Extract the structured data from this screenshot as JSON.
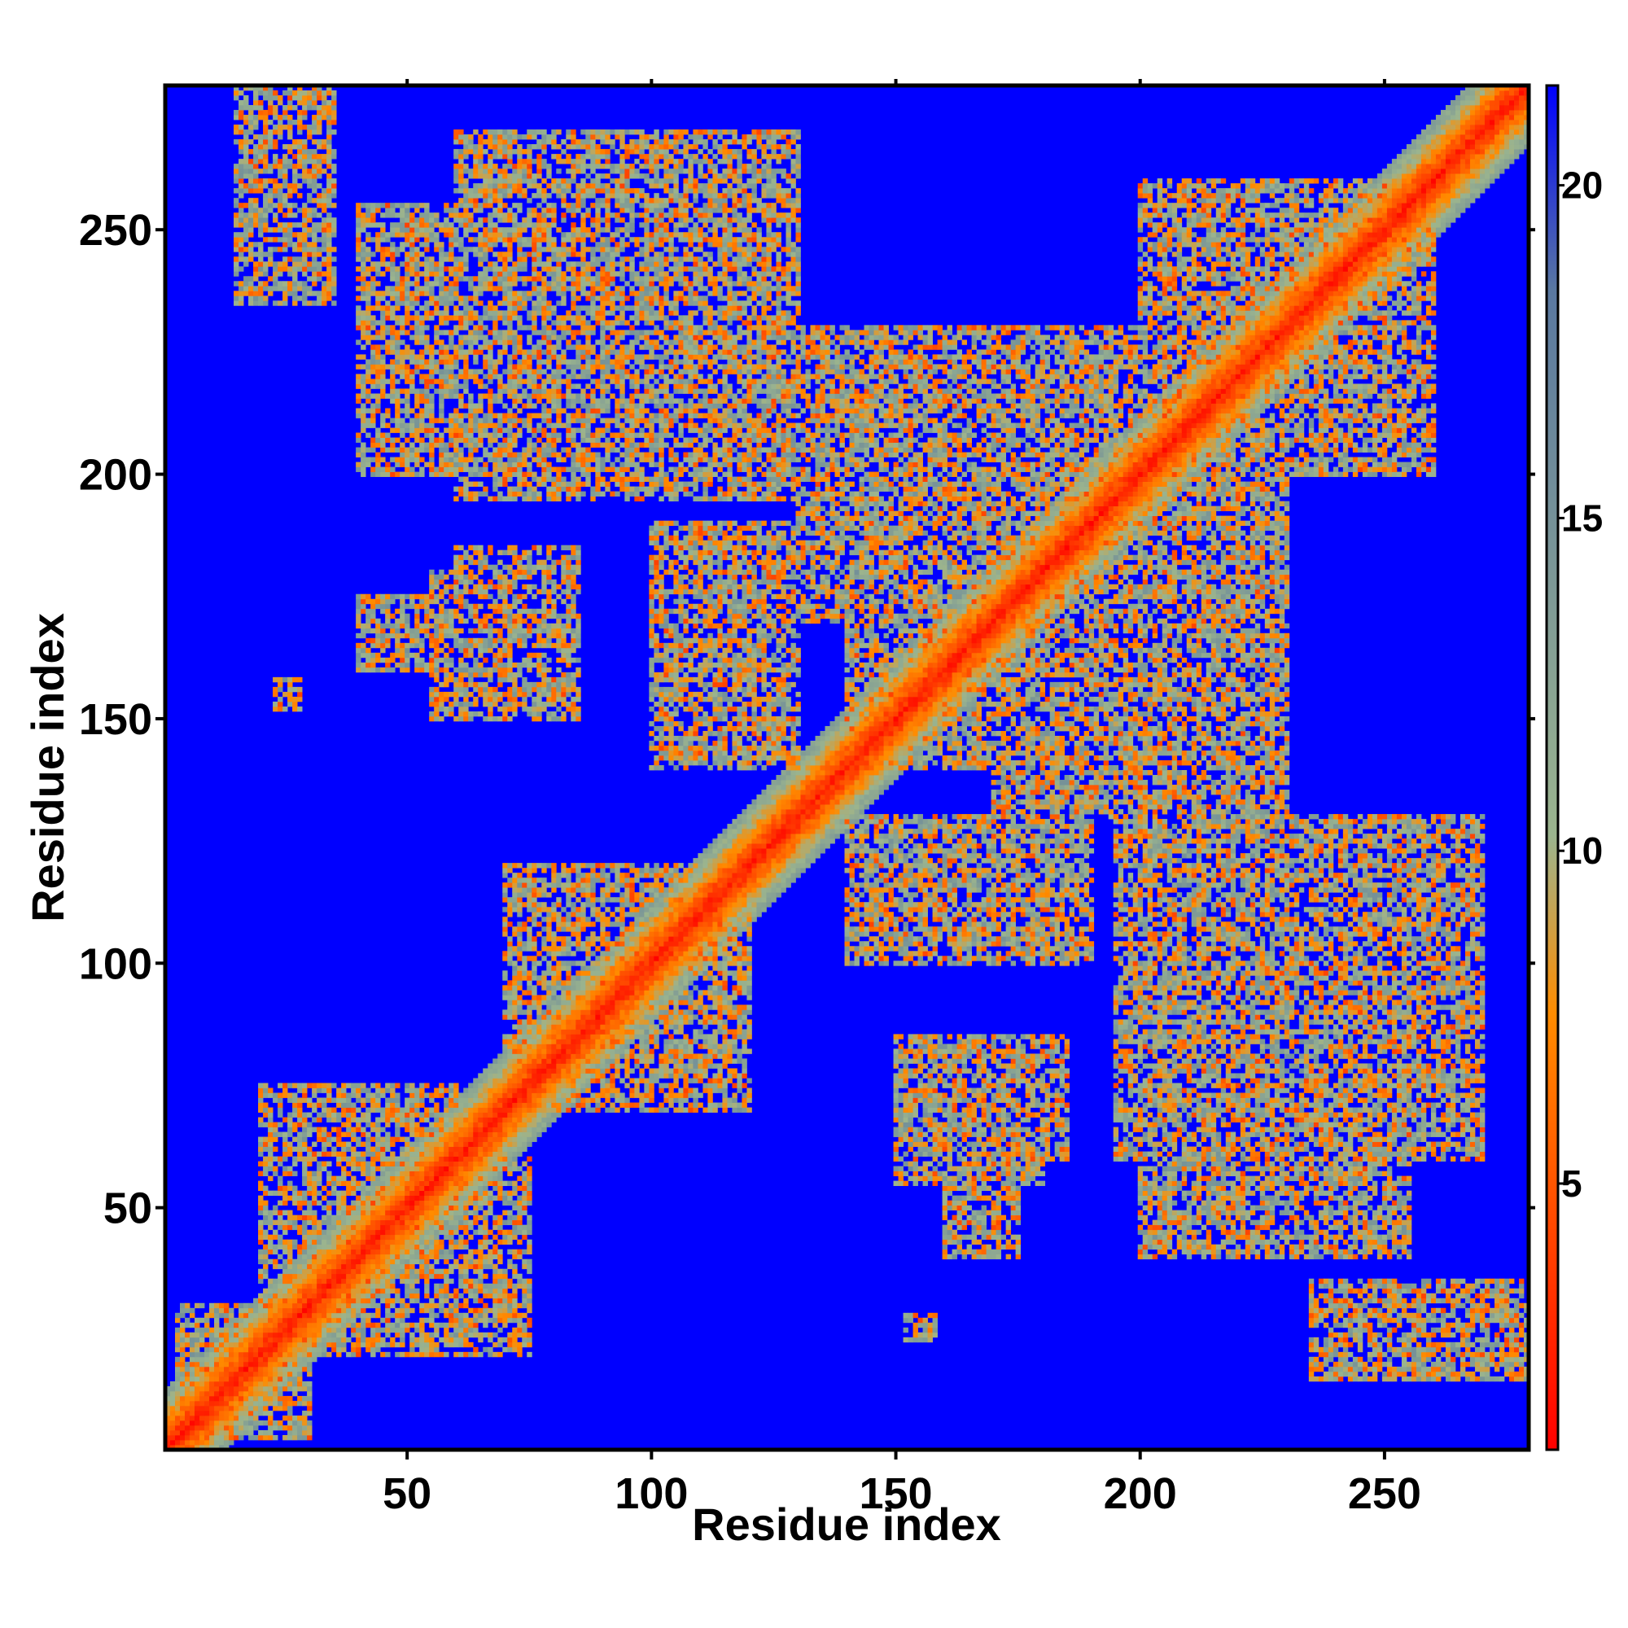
{
  "chart_data": {
    "type": "heatmap",
    "title": "",
    "xlabel": "Residue index",
    "ylabel": "Residue index",
    "xlim": [
      0.5,
      279.5
    ],
    "ylim": [
      0.5,
      279.5
    ],
    "n_residues": 279,
    "x_ticks": [
      50,
      100,
      150,
      200,
      250
    ],
    "y_ticks": [
      50,
      100,
      150,
      200,
      250
    ],
    "x_tick_labels": [
      "50",
      "100",
      "150",
      "200",
      "250"
    ],
    "y_tick_labels": [
      "50",
      "100",
      "150",
      "200",
      "250"
    ],
    "symmetric": true,
    "colorbar": {
      "ticks": [
        5,
        10,
        15,
        20
      ],
      "tick_labels": [
        "5",
        "10",
        "15",
        "20"
      ],
      "range": [
        1,
        21.5
      ],
      "colors": [
        "#ff0000",
        "#ff8c00",
        "#9bb48e",
        "#5a78a0",
        "#0000ff"
      ]
    },
    "background_color": "#0000ff",
    "description_values": {
      "diagonal_value": 1,
      "far_value": 21
    },
    "contact_clusters": [
      {
        "x": [
          3,
          30
        ],
        "y": [
          3,
          30
        ]
      },
      {
        "x": [
          20,
          60
        ],
        "y": [
          20,
          75
        ]
      },
      {
        "x": [
          18,
          28
        ],
        "y": [
          240,
          278
        ]
      },
      {
        "x": [
          30,
          35
        ],
        "y": [
          265,
          278
        ]
      },
      {
        "x": [
          40,
          70
        ],
        "y": [
          200,
          255
        ]
      },
      {
        "x": [
          60,
          85
        ],
        "y": [
          200,
          250
        ]
      },
      {
        "x": [
          75,
          130
        ],
        "y": [
          200,
          270
        ]
      },
      {
        "x": [
          100,
          130
        ],
        "y": [
          200,
          240
        ]
      },
      {
        "x": [
          130,
          145
        ],
        "y": [
          170,
          230
        ]
      },
      {
        "x": [
          55,
          80
        ],
        "y": [
          150,
          180
        ]
      },
      {
        "x": [
          23,
          27
        ],
        "y": [
          152,
          158
        ]
      },
      {
        "x": [
          70,
          110
        ],
        "y": [
          80,
          120
        ]
      },
      {
        "x": [
          100,
          130
        ],
        "y": [
          140,
          190
        ]
      },
      {
        "x": [
          140,
          170
        ],
        "y": [
          140,
          200
        ]
      },
      {
        "x": [
          150,
          200
        ],
        "y": [
          190,
          220
        ]
      },
      {
        "x": [
          170,
          210
        ],
        "y": [
          130,
          160
        ]
      },
      {
        "x": [
          180,
          230
        ],
        "y": [
          140,
          200
        ]
      },
      {
        "x": [
          200,
          260
        ],
        "y": [
          200,
          250
        ]
      },
      {
        "x": [
          195,
          270
        ],
        "y": [
          60,
          130
        ]
      },
      {
        "x": [
          230,
          270
        ],
        "y": [
          70,
          100
        ]
      },
      {
        "x": [
          150,
          185
        ],
        "y": [
          60,
          85
        ]
      },
      {
        "x": [
          160,
          175
        ],
        "y": [
          40,
          70
        ]
      },
      {
        "x": [
          152,
          158
        ],
        "y": [
          23,
          28
        ]
      },
      {
        "x": [
          205,
          245
        ],
        "y": [
          45,
          80
        ]
      },
      {
        "x": [
          235,
          279
        ],
        "y": [
          15,
          35
        ]
      }
    ]
  }
}
